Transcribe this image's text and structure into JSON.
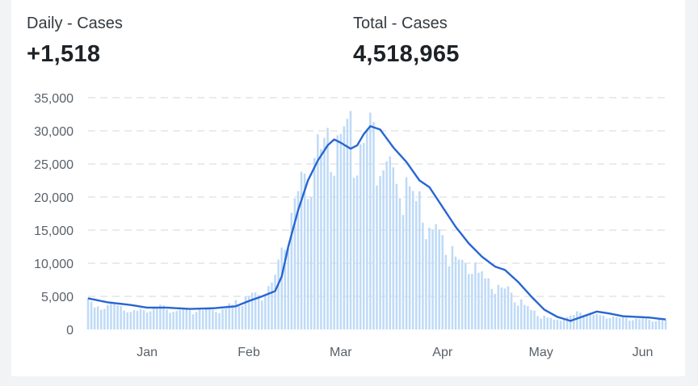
{
  "stats": {
    "daily": {
      "label": "Daily - Cases",
      "value": "+1,518"
    },
    "total": {
      "label": "Total - Cases",
      "value": "4,518,965"
    }
  },
  "colors": {
    "bar": "#bfdaf7",
    "line": "#2766d1",
    "grid": "#dcdfe3"
  },
  "chart_data": {
    "type": "bar",
    "overlay": "line (7-day average)",
    "x_axis": {
      "type": "date",
      "start": "2021-12-14",
      "end": "2022-06-08",
      "ticks": [
        "Jan",
        "Feb",
        "Mar",
        "Apr",
        "May",
        "Jun"
      ],
      "tick_dates": [
        "2022-01-01",
        "2022-02-01",
        "2022-03-01",
        "2022-04-01",
        "2022-05-01",
        "2022-06-01"
      ]
    },
    "y_axis": {
      "ylim": [
        0,
        35000
      ],
      "ticks": [
        "0",
        "5,000",
        "10,000",
        "15,000",
        "20,000",
        "25,000",
        "30,000",
        "35,000"
      ],
      "tick_values": [
        0,
        5000,
        10000,
        15000,
        20000,
        25000,
        30000,
        35000
      ]
    },
    "grid": true,
    "bar_keypoints": [
      [
        "2021-12-14",
        4800
      ],
      [
        "2021-12-16",
        3600
      ],
      [
        "2021-12-20",
        4000
      ],
      [
        "2021-12-24",
        3700
      ],
      [
        "2021-12-27",
        2900
      ],
      [
        "2022-01-01",
        3200
      ],
      [
        "2022-01-03",
        3700
      ],
      [
        "2022-01-10",
        3000
      ],
      [
        "2022-01-17",
        3100
      ],
      [
        "2022-01-24",
        3200
      ],
      [
        "2022-01-28",
        4200
      ],
      [
        "2022-02-01",
        5200
      ],
      [
        "2022-02-05",
        5800
      ],
      [
        "2022-02-09",
        8500
      ],
      [
        "2022-02-12",
        14000
      ],
      [
        "2022-02-15",
        20000
      ],
      [
        "2022-02-18",
        24000
      ],
      [
        "2022-02-21",
        27500
      ],
      [
        "2022-02-24",
        30500
      ],
      [
        "2022-02-27",
        27000
      ],
      [
        "2022-03-01",
        28000
      ],
      [
        "2022-03-04",
        33000
      ],
      [
        "2022-03-07",
        29000
      ],
      [
        "2022-03-10",
        32000
      ],
      [
        "2022-03-13",
        27000
      ],
      [
        "2022-03-16",
        26000
      ],
      [
        "2022-03-20",
        22000
      ],
      [
        "2022-03-24",
        21000
      ],
      [
        "2022-03-28",
        17000
      ],
      [
        "2022-04-01",
        14000
      ],
      [
        "2022-04-04",
        12000
      ],
      [
        "2022-04-07",
        11500
      ],
      [
        "2022-04-10",
        10000
      ],
      [
        "2022-04-14",
        8500
      ],
      [
        "2022-04-18",
        7000
      ],
      [
        "2022-04-22",
        6000
      ],
      [
        "2022-04-25",
        4500
      ],
      [
        "2022-04-28",
        3200
      ],
      [
        "2022-05-02",
        2000
      ],
      [
        "2022-05-06",
        1400
      ],
      [
        "2022-05-10",
        2200
      ],
      [
        "2022-05-14",
        3000
      ],
      [
        "2022-05-18",
        2300
      ],
      [
        "2022-05-22",
        2000
      ],
      [
        "2022-05-26",
        1800
      ],
      [
        "2022-05-30",
        1600
      ],
      [
        "2022-06-03",
        1500
      ],
      [
        "2022-06-08",
        1518
      ]
    ],
    "line_keypoints": [
      [
        "2021-12-14",
        4700
      ],
      [
        "2021-12-20",
        4100
      ],
      [
        "2021-12-27",
        3700
      ],
      [
        "2022-01-01",
        3300
      ],
      [
        "2022-01-07",
        3300
      ],
      [
        "2022-01-14",
        3100
      ],
      [
        "2022-01-21",
        3200
      ],
      [
        "2022-01-28",
        3500
      ],
      [
        "2022-02-01",
        4300
      ],
      [
        "2022-02-05",
        5000
      ],
      [
        "2022-02-09",
        5800
      ],
      [
        "2022-02-11",
        8000
      ],
      [
        "2022-02-13",
        12500
      ],
      [
        "2022-02-16",
        18000
      ],
      [
        "2022-02-19",
        22500
      ],
      [
        "2022-02-22",
        25500
      ],
      [
        "2022-02-25",
        27800
      ],
      [
        "2022-02-27",
        28700
      ],
      [
        "2022-03-01",
        28200
      ],
      [
        "2022-03-04",
        27300
      ],
      [
        "2022-03-06",
        27800
      ],
      [
        "2022-03-08",
        29500
      ],
      [
        "2022-03-10",
        30700
      ],
      [
        "2022-03-13",
        30200
      ],
      [
        "2022-03-17",
        27500
      ],
      [
        "2022-03-21",
        25300
      ],
      [
        "2022-03-25",
        22500
      ],
      [
        "2022-03-28",
        21500
      ],
      [
        "2022-04-01",
        18500
      ],
      [
        "2022-04-05",
        15500
      ],
      [
        "2022-04-09",
        13000
      ],
      [
        "2022-04-13",
        11000
      ],
      [
        "2022-04-17",
        9500
      ],
      [
        "2022-04-20",
        9000
      ],
      [
        "2022-04-24",
        7200
      ],
      [
        "2022-04-28",
        5000
      ],
      [
        "2022-05-02",
        3000
      ],
      [
        "2022-05-06",
        1900
      ],
      [
        "2022-05-10",
        1300
      ],
      [
        "2022-05-14",
        2000
      ],
      [
        "2022-05-18",
        2700
      ],
      [
        "2022-05-22",
        2400
      ],
      [
        "2022-05-26",
        2000
      ],
      [
        "2022-05-30",
        1900
      ],
      [
        "2022-06-03",
        1800
      ],
      [
        "2022-06-08",
        1518
      ]
    ]
  }
}
